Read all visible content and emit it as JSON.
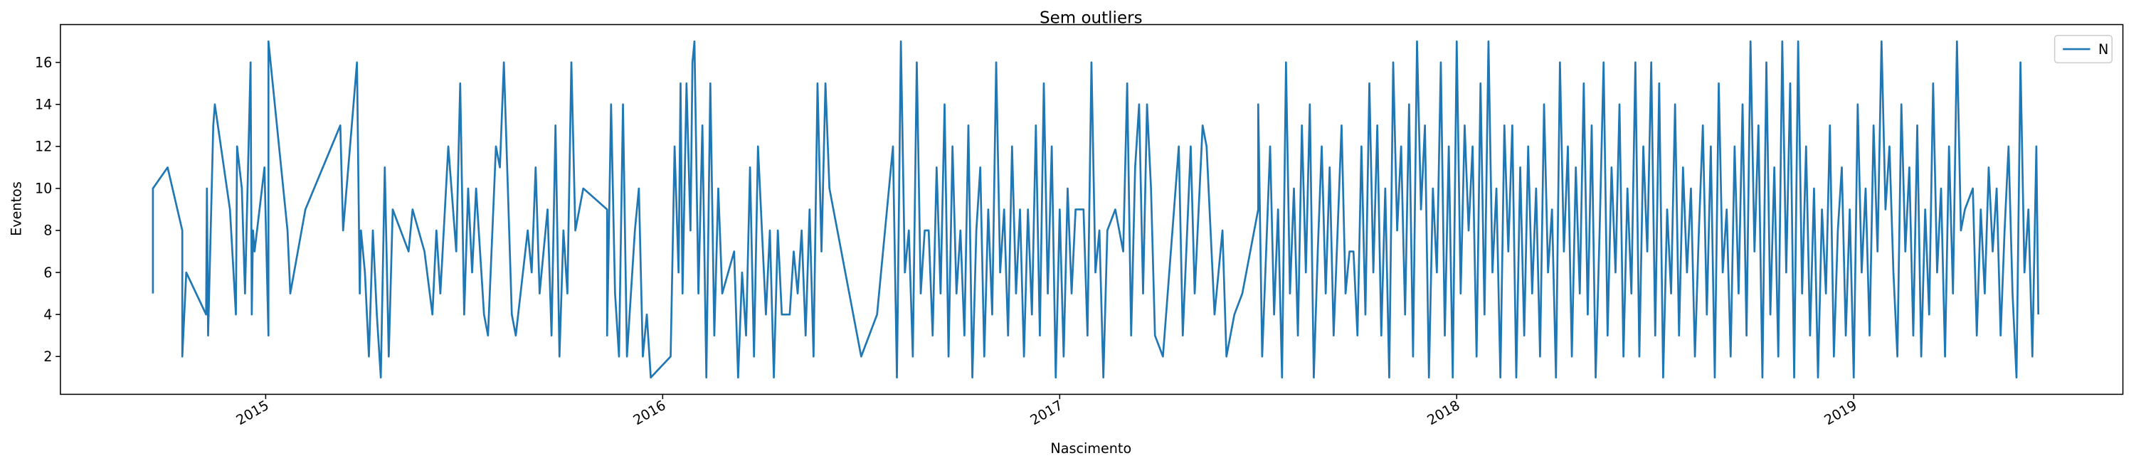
{
  "chart_data": {
    "type": "line",
    "title": "Sem outliers",
    "x_label": "Nascimento",
    "y_label": "Eventos",
    "x": [
      2014.716,
      2014.716,
      2014.753,
      2014.79,
      2014.79,
      2014.8,
      2014.85,
      2014.852,
      2014.855,
      2014.868,
      2014.872,
      2014.91,
      2014.925,
      2014.928,
      2014.94,
      2014.948,
      2014.962,
      2014.965,
      2014.968,
      2014.972,
      2014.997,
      2015.007,
      2015.007,
      2015.055,
      2015.062,
      2015.1,
      2015.188,
      2015.195,
      2015.23,
      2015.237,
      2015.24,
      2015.25,
      2015.26,
      2015.27,
      2015.28,
      2015.29,
      2015.3,
      2015.31,
      2015.32,
      2015.36,
      2015.37,
      2015.4,
      2015.42,
      2015.43,
      2015.44,
      2015.46,
      2015.48,
      2015.49,
      2015.5,
      2015.51,
      2015.52,
      2015.53,
      2015.55,
      2015.56,
      2015.58,
      2015.59,
      2015.6,
      2015.62,
      2015.63,
      2015.66,
      2015.67,
      2015.68,
      2015.69,
      2015.71,
      2015.72,
      2015.73,
      2015.74,
      2015.75,
      2015.76,
      2015.77,
      2015.78,
      2015.8,
      2015.86,
      2015.86,
      2015.87,
      2015.88,
      2015.89,
      2015.9,
      2015.91,
      2015.92,
      2015.93,
      2015.94,
      2015.95,
      2015.96,
      2015.97,
      2016.02,
      2016.03,
      2016.04,
      2016.045,
      2016.05,
      2016.06,
      2016.07,
      2016.075,
      2016.08,
      2016.09,
      2016.1,
      2016.11,
      2016.12,
      2016.13,
      2016.14,
      2016.15,
      2016.18,
      2016.19,
      2016.2,
      2016.21,
      2016.22,
      2016.23,
      2016.24,
      2016.26,
      2016.27,
      2016.28,
      2016.29,
      2016.3,
      2016.32,
      2016.33,
      2016.34,
      2016.35,
      2016.36,
      2016.37,
      2016.38,
      2016.39,
      2016.4,
      2016.41,
      2016.42,
      2016.5,
      2016.54,
      2016.58,
      2016.59,
      2016.6,
      2016.61,
      2016.62,
      2016.63,
      2016.64,
      2016.65,
      2016.66,
      2016.67,
      2016.68,
      2016.69,
      2016.7,
      2016.71,
      2016.72,
      2016.73,
      2016.74,
      2016.75,
      2016.76,
      2016.77,
      2016.78,
      2016.79,
      2016.8,
      2016.81,
      2016.82,
      2016.83,
      2016.84,
      2016.85,
      2016.86,
      2016.87,
      2016.88,
      2016.89,
      2016.9,
      2016.91,
      2016.92,
      2016.93,
      2016.94,
      2016.95,
      2016.96,
      2016.97,
      2016.98,
      2016.99,
      2017.0,
      2017.01,
      2017.02,
      2017.03,
      2017.04,
      2017.06,
      2017.07,
      2017.08,
      2017.09,
      2017.1,
      2017.11,
      2017.12,
      2017.14,
      2017.16,
      2017.17,
      2017.18,
      2017.19,
      2017.2,
      2017.21,
      2017.22,
      2017.23,
      2017.24,
      2017.26,
      2017.3,
      2017.31,
      2017.33,
      2017.34,
      2017.36,
      2017.37,
      2017.39,
      2017.41,
      2017.42,
      2017.44,
      2017.46,
      2017.5,
      2017.5,
      2017.51,
      2017.52,
      2017.53,
      2017.54,
      2017.55,
      2017.56,
      2017.57,
      2017.58,
      2017.59,
      2017.6,
      2017.61,
      2017.62,
      2017.63,
      2017.64,
      2017.65,
      2017.66,
      2017.67,
      2017.68,
      2017.69,
      2017.7,
      2017.71,
      2017.72,
      2017.73,
      2017.74,
      2017.75,
      2017.76,
      2017.77,
      2017.78,
      2017.79,
      2017.8,
      2017.81,
      2017.82,
      2017.83,
      2017.84,
      2017.85,
      2017.86,
      2017.87,
      2017.88,
      2017.89,
      2017.9,
      2017.91,
      2017.92,
      2017.93,
      2017.94,
      2017.95,
      2017.96,
      2017.97,
      2017.98,
      2017.99,
      2018.0,
      2018.01,
      2018.02,
      2018.03,
      2018.04,
      2018.05,
      2018.06,
      2018.07,
      2018.08,
      2018.09,
      2018.1,
      2018.11,
      2018.12,
      2018.13,
      2018.14,
      2018.15,
      2018.16,
      2018.17,
      2018.18,
      2018.19,
      2018.2,
      2018.21,
      2018.22,
      2018.23,
      2018.24,
      2018.25,
      2018.26,
      2018.27,
      2018.28,
      2018.29,
      2018.3,
      2018.31,
      2018.32,
      2018.33,
      2018.34,
      2018.35,
      2018.36,
      2018.37,
      2018.38,
      2018.39,
      2018.4,
      2018.41,
      2018.42,
      2018.43,
      2018.44,
      2018.45,
      2018.46,
      2018.47,
      2018.48,
      2018.49,
      2018.5,
      2018.51,
      2018.52,
      2018.53,
      2018.54,
      2018.55,
      2018.56,
      2018.57,
      2018.58,
      2018.59,
      2018.6,
      2018.61,
      2018.62,
      2018.63,
      2018.64,
      2018.65,
      2018.66,
      2018.67,
      2018.68,
      2018.69,
      2018.7,
      2018.71,
      2018.72,
      2018.73,
      2018.74,
      2018.75,
      2018.76,
      2018.77,
      2018.78,
      2018.79,
      2018.8,
      2018.81,
      2018.82,
      2018.83,
      2018.84,
      2018.85,
      2018.86,
      2018.87,
      2018.88,
      2018.89,
      2018.9,
      2018.91,
      2018.92,
      2018.93,
      2018.94,
      2018.95,
      2018.96,
      2018.97,
      2018.98,
      2018.99,
      2019.0,
      2019.01,
      2019.02,
      2019.03,
      2019.04,
      2019.05,
      2019.06,
      2019.07,
      2019.08,
      2019.09,
      2019.1,
      2019.11,
      2019.12,
      2019.13,
      2019.14,
      2019.15,
      2019.16,
      2019.17,
      2019.18,
      2019.19,
      2019.2,
      2019.21,
      2019.22,
      2019.23,
      2019.24,
      2019.25,
      2019.26,
      2019.27,
      2019.28,
      2019.3,
      2019.31,
      2019.32,
      2019.33,
      2019.34,
      2019.35,
      2019.36,
      2019.37,
      2019.38,
      2019.39,
      2019.4,
      2019.41,
      2019.42,
      2019.43,
      2019.44,
      2019.45,
      2019.46,
      2019.465
    ],
    "series": [
      {
        "name": "N",
        "color": "#1f77b4",
        "values": [
          5,
          10,
          11,
          8,
          2,
          6,
          4,
          10,
          3,
          13,
          14,
          9,
          4,
          12,
          10,
          5,
          16,
          4,
          8,
          7,
          11,
          3,
          17,
          8,
          5,
          9,
          13,
          8,
          16,
          5,
          8,
          6,
          2,
          8,
          4,
          1,
          11,
          2,
          9,
          7,
          9,
          7,
          4,
          8,
          5,
          12,
          7,
          15,
          4,
          10,
          6,
          10,
          4,
          3,
          12,
          11,
          16,
          4,
          3,
          8,
          6,
          11,
          5,
          9,
          3,
          13,
          2,
          8,
          5,
          16,
          8,
          10,
          9,
          3,
          14,
          5,
          2,
          14,
          2,
          5,
          8,
          10,
          2,
          4,
          1,
          2,
          12,
          6,
          15,
          5,
          15,
          8,
          16,
          17,
          5,
          13,
          1,
          15,
          3,
          10,
          5,
          7,
          1,
          6,
          3,
          11,
          2,
          12,
          4,
          8,
          1,
          8,
          4,
          4,
          7,
          5,
          8,
          3,
          9,
          2,
          15,
          7,
          15,
          10,
          2,
          4,
          12,
          1,
          17,
          6,
          8,
          2,
          16,
          5,
          8,
          8,
          3,
          11,
          5,
          14,
          2,
          12,
          5,
          8,
          3,
          13,
          1,
          8,
          11,
          2,
          9,
          4,
          16,
          6,
          9,
          3,
          12,
          5,
          9,
          2,
          9,
          4,
          13,
          3,
          15,
          5,
          12,
          1,
          9,
          2,
          10,
          5,
          9,
          9,
          3,
          16,
          6,
          8,
          1,
          8,
          9,
          7,
          15,
          3,
          11,
          14,
          5,
          14,
          10,
          3,
          2,
          12,
          3,
          12,
          5,
          13,
          12,
          4,
          8,
          2,
          4,
          5,
          9,
          14,
          2,
          7,
          12,
          4,
          9,
          1,
          16,
          5,
          10,
          3,
          13,
          6,
          14,
          1,
          7,
          12,
          5,
          11,
          3,
          8,
          13,
          5,
          7,
          7,
          3,
          12,
          4,
          15,
          6,
          13,
          3,
          10,
          1,
          16,
          8,
          12,
          4,
          14,
          2,
          17,
          9,
          13,
          1,
          10,
          6,
          16,
          3,
          12,
          1,
          17,
          5,
          13,
          8,
          12,
          2,
          15,
          4,
          17,
          6,
          10,
          1,
          13,
          7,
          13,
          1,
          11,
          3,
          12,
          5,
          10,
          2,
          14,
          6,
          9,
          1,
          16,
          7,
          12,
          2,
          11,
          5,
          15,
          4,
          13,
          1,
          8,
          16,
          3,
          11,
          6,
          14,
          2,
          10,
          5,
          16,
          2,
          12,
          7,
          16,
          3,
          15,
          1,
          9,
          5,
          14,
          3,
          11,
          6,
          10,
          2,
          8,
          13,
          4,
          12,
          1,
          15,
          6,
          9,
          2,
          12,
          5,
          14,
          3,
          17,
          7,
          13,
          1,
          16,
          4,
          11,
          2,
          17,
          6,
          15,
          1,
          17,
          5,
          12,
          3,
          10,
          1,
          9,
          5,
          13,
          2,
          8,
          11,
          3,
          9,
          1,
          14,
          6,
          10,
          3,
          13,
          7,
          17,
          9,
          12,
          6,
          2,
          14,
          7,
          11,
          3,
          13,
          2,
          9,
          4,
          15,
          6,
          10,
          2,
          12,
          5,
          17,
          8,
          9,
          10,
          3,
          9,
          5,
          11,
          7,
          10,
          3,
          8,
          12,
          5,
          1,
          16,
          6,
          9,
          2,
          12,
          4
        ]
      }
    ],
    "xlim": [
      2014.483,
      2019.678
    ],
    "xticks": [
      2015,
      2016,
      2017,
      2018,
      2019
    ],
    "ylim": [
      0.2,
      17.8
    ],
    "yticks": [
      2,
      4,
      6,
      8,
      10,
      12,
      14,
      16
    ],
    "legend": "upper right"
  }
}
